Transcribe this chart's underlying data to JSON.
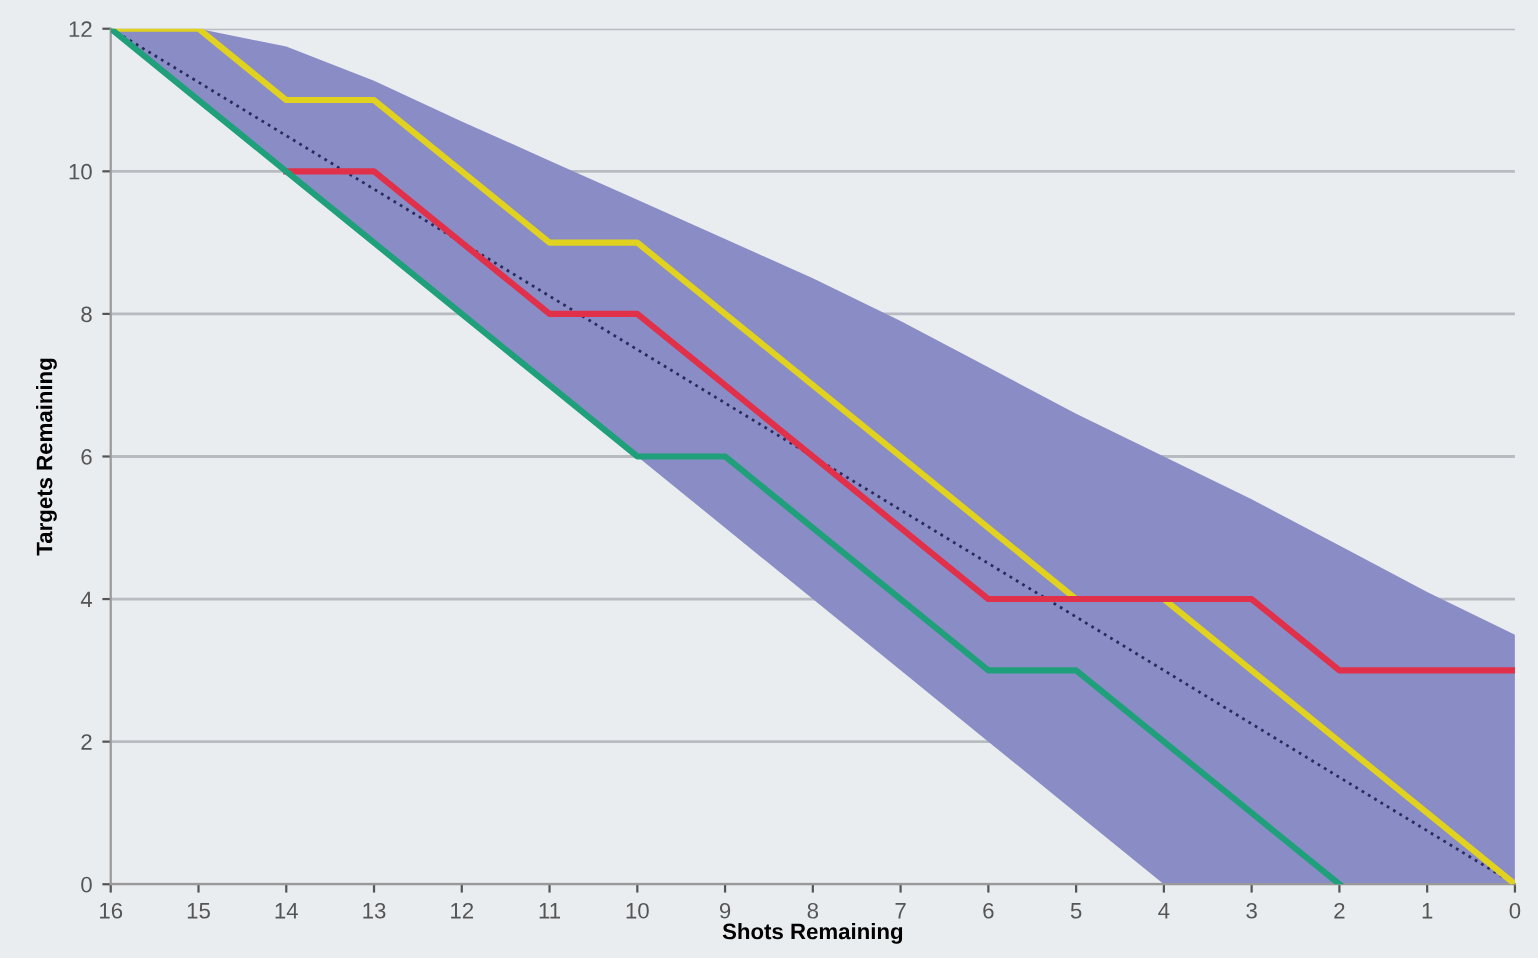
{
  "chart_data": {
    "type": "line",
    "xlabel": "Shots Remaining",
    "ylabel": "Targets Remaining",
    "x": [
      16,
      15,
      14,
      13,
      12,
      11,
      10,
      9,
      8,
      7,
      6,
      5,
      4,
      3,
      2,
      1,
      0
    ],
    "series": [
      {
        "color": "#2a2a5a",
        "line_style": "dotted",
        "values": [
          12,
          11.25,
          10.5,
          9.75,
          9,
          8.25,
          7.5,
          6.75,
          6,
          5.25,
          4.5,
          3.75,
          3,
          2.25,
          1.5,
          0.75,
          0
        ],
        "lower": [
          12,
          11,
          10,
          9,
          8,
          7,
          6,
          5,
          4,
          3,
          2,
          1,
          0,
          0,
          0,
          0,
          0
        ],
        "upper": [
          12,
          12,
          11.75,
          11.27,
          10.7,
          10.15,
          9.6,
          9.05,
          8.5,
          7.9,
          7.25,
          6.6,
          6,
          5.4,
          4.75,
          4.1,
          3.5
        ]
      },
      {
        "color": "#e0d21e",
        "values": [
          12,
          12,
          11,
          11,
          10,
          9,
          9,
          8,
          7,
          6,
          5,
          4,
          4,
          3,
          2,
          1,
          0
        ]
      },
      {
        "color": "#e0304a",
        "values": [
          null,
          null,
          10,
          10,
          9,
          8,
          8,
          7,
          6,
          5,
          4,
          4,
          4,
          4,
          3,
          3,
          3
        ]
      },
      {
        "color": "#1fa07a",
        "values": [
          12,
          11,
          10,
          9,
          8,
          7,
          6,
          6,
          5,
          4,
          3,
          3,
          2,
          1,
          0,
          null,
          null
        ]
      }
    ],
    "xlim": [
      16,
      0
    ],
    "ylim": [
      0,
      12
    ],
    "xticks": [
      16,
      15,
      14,
      13,
      12,
      11,
      10,
      9,
      8,
      7,
      6,
      5,
      4,
      3,
      2,
      1,
      0
    ],
    "yticks": [
      0,
      2,
      4,
      6,
      8,
      10,
      12
    ],
    "grid": "y",
    "marker": "none"
  }
}
